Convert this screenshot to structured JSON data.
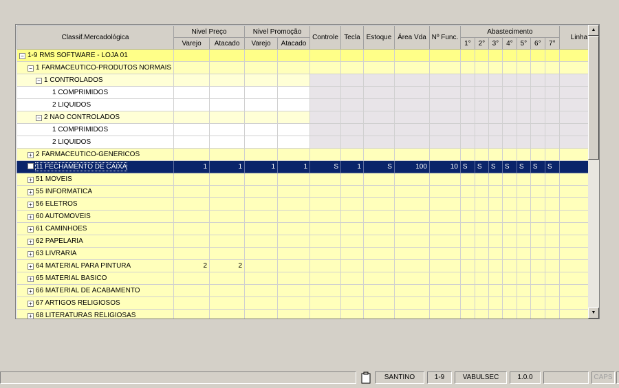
{
  "header": {
    "classif": "Classif.Mercadológica",
    "nivel_preco": "Nivel Preço",
    "nivel_promocao": "Nivel Promoção",
    "varejo": "Varejo",
    "atacado": "Atacado",
    "controle": "Controle",
    "tecla": "Tecla",
    "estoque": "Estoque",
    "area_vda": "Área Vda",
    "n_func": "Nº Func.",
    "abastecimento": "Abastecimento",
    "dias": [
      "1°",
      "2°",
      "3°",
      "4°",
      "5°",
      "6°",
      "7°"
    ],
    "linha": "Linha"
  },
  "rows": [
    {
      "label": "1-9 RMS SOFTWARE - LOJA 01",
      "level": 0,
      "expander": "minus",
      "values": []
    },
    {
      "label": "1 FARMACEUTICO-PRODUTOS NORMAIS",
      "level": 1,
      "expander": "minus",
      "values": []
    },
    {
      "label": "1 CONTROLADOS",
      "level": 2,
      "expander": "minus",
      "values": [],
      "grey": true
    },
    {
      "label": "1 COMPRIMIDOS",
      "level": 3,
      "expander": "",
      "values": [],
      "grey": true
    },
    {
      "label": "2 LIQUIDOS",
      "level": 3,
      "expander": "",
      "values": [],
      "grey": true
    },
    {
      "label": "2 NAO CONTROLADOS",
      "level": 2,
      "expander": "minus",
      "values": [],
      "grey": true
    },
    {
      "label": "1 COMPRIMIDOS",
      "level": 3,
      "expander": "",
      "values": [],
      "grey": true
    },
    {
      "label": "2 LIQUIDOS",
      "level": 3,
      "expander": "",
      "values": [],
      "grey": true
    },
    {
      "label": "2 FARMACEUTICO-GENERICOS",
      "level": 1,
      "expander": "plus",
      "values": []
    },
    {
      "label": "11 FECHAMENTO DE CAIXA",
      "level": 1,
      "expander": "leaf",
      "selected": true,
      "values": [
        "1",
        "1",
        "1",
        "1",
        "S",
        "1",
        "S",
        "100",
        "10",
        "S",
        "S",
        "S",
        "S",
        "S",
        "S",
        "S",
        ""
      ]
    },
    {
      "label": "51 MOVEIS",
      "level": 1,
      "expander": "plus",
      "values": []
    },
    {
      "label": "55 INFORMATICA",
      "level": 1,
      "expander": "plus",
      "values": []
    },
    {
      "label": "56 ELETROS",
      "level": 1,
      "expander": "plus",
      "values": []
    },
    {
      "label": "60 AUTOMOVEIS",
      "level": 1,
      "expander": "plus",
      "values": []
    },
    {
      "label": "61 CAMINHOES",
      "level": 1,
      "expander": "plus",
      "values": []
    },
    {
      "label": "62 PAPELARIA",
      "level": 1,
      "expander": "plus",
      "values": []
    },
    {
      "label": "63 LIVRARIA",
      "level": 1,
      "expander": "plus",
      "values": []
    },
    {
      "label": "64 MATERIAL PARA PINTURA",
      "level": 1,
      "expander": "plus",
      "values": [
        "2",
        "2"
      ]
    },
    {
      "label": "65 MATERIAL BASICO",
      "level": 1,
      "expander": "plus",
      "values": []
    },
    {
      "label": "66 MATERIAL DE ACABAMENTO",
      "level": 1,
      "expander": "plus",
      "values": []
    },
    {
      "label": "67 ARTIGOS RELIGIOSOS",
      "level": 1,
      "expander": "plus",
      "values": []
    },
    {
      "label": "68 LITERATURAS RELIGIOSAS",
      "level": 1,
      "expander": "plus",
      "values": []
    }
  ],
  "status": {
    "user": "SANTINO",
    "store": "1-9",
    "db": "VABULSEC",
    "version": "1.0.0",
    "empty": "",
    "caps": "CAPS"
  },
  "icons": {
    "clipboard": "clipboard-icon",
    "scroll_up": "arrow-up-icon",
    "scroll_down": "arrow-down-icon"
  }
}
